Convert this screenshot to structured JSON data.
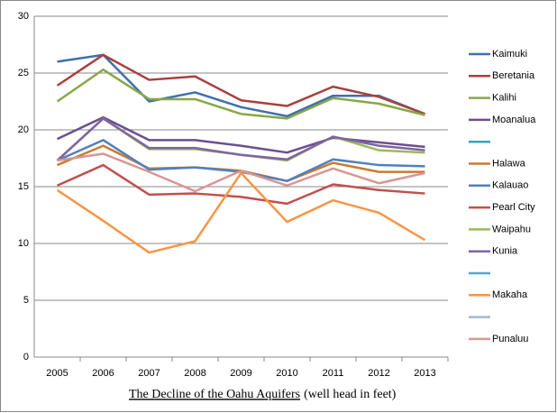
{
  "chart_data": {
    "type": "line",
    "title": "The Decline of the Oahu Aquifers",
    "title_note": "(well head in feet)",
    "categories": [
      "2005",
      "2006",
      "2007",
      "2008",
      "2009",
      "2010",
      "2011",
      "2012",
      "2013"
    ],
    "ylim": [
      0,
      30
    ],
    "yticks": [
      0,
      5,
      10,
      15,
      20,
      25,
      30
    ],
    "grid": true,
    "legend": "right",
    "series": [
      {
        "name": "Kaimuki",
        "color": "#3f6fad",
        "values": [
          26.0,
          26.6,
          22.5,
          23.3,
          22.0,
          21.2,
          23.0,
          23.0,
          21.4
        ]
      },
      {
        "name": "Beretania",
        "color": "#a8403d",
        "values": [
          23.9,
          26.6,
          24.4,
          24.7,
          22.6,
          22.1,
          23.8,
          22.9,
          21.4
        ]
      },
      {
        "name": "Kalihi",
        "color": "#86a845",
        "values": [
          22.5,
          25.3,
          22.7,
          22.7,
          21.4,
          21.0,
          22.8,
          22.3,
          21.3
        ]
      },
      {
        "name": "Moanalua",
        "color": "#6b4f8f",
        "values": [
          19.2,
          21.1,
          19.1,
          19.1,
          18.6,
          18.0,
          19.3,
          18.9,
          18.5
        ]
      },
      {
        "name": null,
        "color": "#3aa0b8",
        "values": [
          null,
          null,
          null,
          null,
          null,
          null,
          null,
          null,
          null
        ]
      },
      {
        "name": "Halawa",
        "color": "#cc7a2e",
        "values": [
          16.9,
          18.6,
          16.6,
          16.7,
          16.4,
          15.5,
          17.1,
          16.3,
          16.3
        ]
      },
      {
        "name": "Kalauao",
        "color": "#4f81bd",
        "values": [
          17.3,
          19.1,
          16.5,
          16.7,
          16.3,
          15.5,
          17.4,
          16.9,
          16.8
        ]
      },
      {
        "name": "Pearl City",
        "color": "#c0504d",
        "values": [
          15.1,
          16.9,
          14.3,
          14.4,
          14.1,
          13.5,
          15.2,
          14.7,
          14.4
        ]
      },
      {
        "name": "Waipahu",
        "color": "#9bbb59",
        "values": [
          17.3,
          21.0,
          18.3,
          18.3,
          17.8,
          17.3,
          19.4,
          18.2,
          18.0
        ]
      },
      {
        "name": "Kunia",
        "color": "#8064a2",
        "values": [
          17.3,
          21.0,
          18.4,
          18.4,
          17.8,
          17.4,
          19.4,
          18.6,
          18.2
        ]
      },
      {
        "name": null,
        "color": "#4bacc6",
        "values": [
          null,
          null,
          null,
          null,
          null,
          null,
          null,
          null,
          null
        ]
      },
      {
        "name": "Makaha",
        "color": "#f79646",
        "values": [
          14.7,
          12.0,
          9.2,
          10.2,
          16.2,
          11.9,
          13.8,
          12.7,
          10.3
        ]
      },
      {
        "name": null,
        "color": "#a5b6d1",
        "values": [
          null,
          null,
          null,
          null,
          null,
          null,
          null,
          null,
          null
        ]
      },
      {
        "name": "Punaluu",
        "color": "#d99694",
        "values": [
          17.3,
          17.9,
          16.3,
          14.6,
          16.4,
          15.1,
          16.6,
          15.3,
          16.2
        ]
      }
    ]
  }
}
